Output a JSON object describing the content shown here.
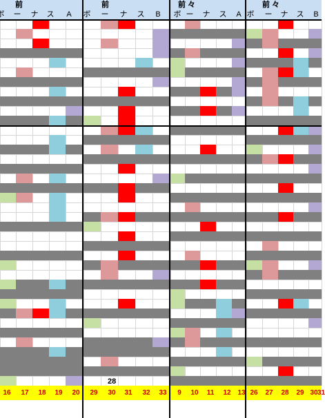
{
  "colors": {
    "red": "#ff0000",
    "pink": "#dd9999",
    "blue": "#8fcfdd",
    "lavender": "#b3a8d4",
    "green": "#c6dfa3",
    "gray": "#808080",
    "header_bg": "#c9ddf3",
    "footer_bg": "#ffff00",
    "footer_text": "#cc0000"
  },
  "blocks": [
    {
      "title": "前",
      "header": [
        "ボ",
        "ー",
        "ナ",
        "ス",
        "A"
      ],
      "footer": [
        "16",
        "17",
        "18",
        "19",
        "20"
      ]
    },
    {
      "title": "前",
      "header": [
        "ボ",
        "ー",
        "ナ",
        "ス",
        "B"
      ],
      "footer": [
        "29",
        "30",
        "31",
        "32",
        "33"
      ]
    },
    {
      "title": "前 々",
      "header": [
        "ボ",
        "ー",
        "ナ",
        "ス",
        "A"
      ],
      "footer": [
        "9",
        "10",
        "11",
        "12",
        "13"
      ]
    },
    {
      "title": "前 々",
      "header": [
        "ボ",
        "ー",
        "ナ",
        "ス",
        "B"
      ],
      "footer": [
        "26",
        "27",
        "28",
        "29",
        "30",
        "31"
      ]
    }
  ],
  "annotation": "28"
}
